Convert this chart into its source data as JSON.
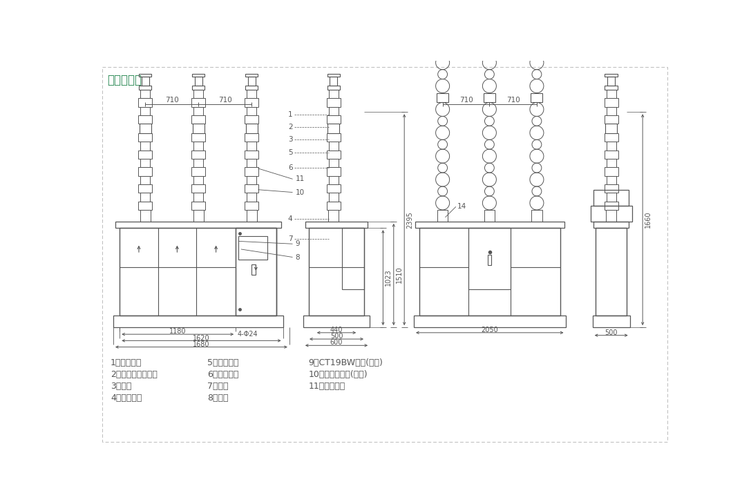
{
  "title": "外形尺寸图",
  "title_color": "#2E8B57",
  "title_fontsize": 12,
  "bg_color": "#ffffff",
  "line_color": "#555555",
  "dim_color": "#555555",
  "gray_color": "#999999",
  "legend_items_col1": [
    "1、上进线端",
    "2、真空灭弧室瓷套",
    "3、支架",
    "4、下出线端"
  ],
  "legend_items_col2": [
    "5、绝缘拉杆",
    "6、支柱瓷套",
    "7、底架",
    "8、铭牌"
  ],
  "legend_items_col3": [
    "9、CT19BW机构(箱内)",
    "10、电流互感器(箱内)",
    "11、手孔盖板",
    ""
  ]
}
